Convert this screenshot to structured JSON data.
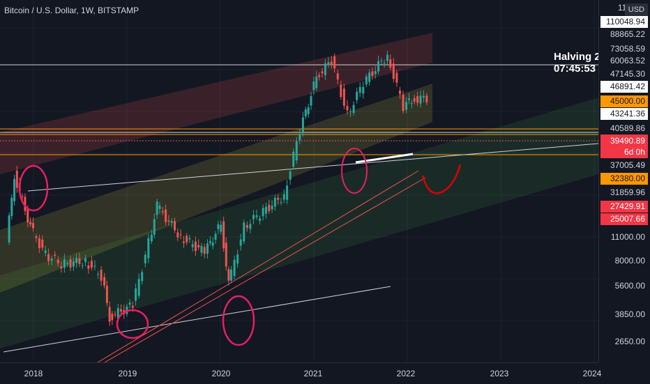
{
  "header": {
    "title": "Bitcoin / U.S. Dollar, 1W, BITSTAMP",
    "currency_button": "USD"
  },
  "countdown": {
    "line1": "Halving 2",
    "line2": "07:45:53"
  },
  "price_axis": {
    "labels": [
      {
        "text": "110048.94",
        "style": "box"
      },
      {
        "text": "88865.22",
        "style": "plain"
      },
      {
        "text": "73058.59",
        "style": "plain"
      },
      {
        "text": "60063.52",
        "style": "plain"
      },
      {
        "text": "47145.30",
        "style": "plain"
      },
      {
        "text": "46891.42",
        "style": "box"
      },
      {
        "text": "45000.00",
        "style": "orange"
      },
      {
        "text": "43241.36",
        "style": "box"
      },
      {
        "text": "40589.86",
        "style": "plain"
      },
      {
        "text": "37005.49",
        "style": "plain"
      },
      {
        "text": "32380.00",
        "style": "orange"
      },
      {
        "text": "31859.96",
        "style": "plain"
      },
      {
        "text": "27429.91",
        "style": "red"
      },
      {
        "text": "25007.66",
        "style": "red"
      },
      {
        "text": "11000.00",
        "style": "plain"
      },
      {
        "text": "8000.00",
        "style": "plain"
      },
      {
        "text": "5600.00",
        "style": "plain"
      },
      {
        "text": "3850.00",
        "style": "plain"
      },
      {
        "text": "2650.00",
        "style": "plain"
      }
    ],
    "top_partial": "11... 04",
    "current_price": "39490.89",
    "countdown_bar": "6d 0h"
  },
  "time_axis": {
    "labels": [
      "2018",
      "2019",
      "2020",
      "2021",
      "2022",
      "2023",
      "2024"
    ]
  },
  "chart_data": {
    "type": "candlestick",
    "symbol": "Bitcoin / U.S. Dollar",
    "interval": "1W",
    "exchange": "BITSTAMP",
    "scale": "log",
    "x_range": [
      "2017-10",
      "2024-01"
    ],
    "y_range": [
      2400,
      120000
    ],
    "current_price": 39490.89,
    "series": [
      {
        "x": "2017-11",
        "y": 8000
      },
      {
        "x": "2017-12",
        "y": 17000
      },
      {
        "x": "2018-02",
        "y": 9500
      },
      {
        "x": "2018-04",
        "y": 7000
      },
      {
        "x": "2018-06",
        "y": 6300
      },
      {
        "x": "2018-09",
        "y": 6500
      },
      {
        "x": "2018-11",
        "y": 5500
      },
      {
        "x": "2018-12",
        "y": 3500
      },
      {
        "x": "2019-03",
        "y": 4000
      },
      {
        "x": "2019-05",
        "y": 8000
      },
      {
        "x": "2019-06",
        "y": 12000
      },
      {
        "x": "2019-09",
        "y": 8500
      },
      {
        "x": "2019-12",
        "y": 7200
      },
      {
        "x": "2020-02",
        "y": 9800
      },
      {
        "x": "2020-03",
        "y": 5000
      },
      {
        "x": "2020-05",
        "y": 9500
      },
      {
        "x": "2020-07",
        "y": 11000
      },
      {
        "x": "2020-10",
        "y": 13500
      },
      {
        "x": "2020-12",
        "y": 28000
      },
      {
        "x": "2021-02",
        "y": 50000
      },
      {
        "x": "2021-04",
        "y": 60000
      },
      {
        "x": "2021-06",
        "y": 33000
      },
      {
        "x": "2021-08",
        "y": 47000
      },
      {
        "x": "2021-11",
        "y": 64000
      },
      {
        "x": "2022-01",
        "y": 36000
      },
      {
        "x": "2022-02",
        "y": 39000
      },
      {
        "x": "2022-04",
        "y": 39490.89
      }
    ]
  },
  "colors": {
    "background": "#131722",
    "up": "#26a69a",
    "down": "#ef5350",
    "accent_orange": "#ff9800",
    "annotation": "#e91e63"
  }
}
